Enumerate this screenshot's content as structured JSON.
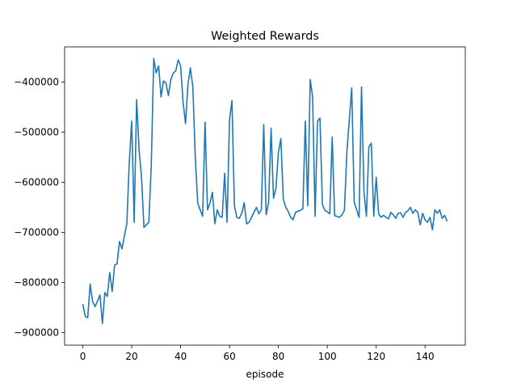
{
  "chart_data": {
    "type": "line",
    "title": "Weighted Rewards",
    "xlabel": "episode",
    "ylabel": "",
    "xlim": [
      -7.45,
      156.45
    ],
    "ylim": [
      -925000,
      -330000
    ],
    "xticks": [
      0,
      20,
      40,
      60,
      80,
      100,
      120,
      140
    ],
    "yticks": [
      -900000,
      -800000,
      -700000,
      -600000,
      -500000,
      -400000
    ],
    "xtick_labels": [
      "0",
      "20",
      "40",
      "60",
      "80",
      "100",
      "120",
      "140"
    ],
    "ytick_labels": [
      "−900000",
      "−800000",
      "−700000",
      "−600000",
      "−500000",
      "−400000"
    ],
    "grid": false,
    "line_color": "#1f77b4",
    "series": [
      {
        "x": [
          0,
          1,
          2,
          3,
          4,
          5,
          6,
          7,
          8,
          9,
          10,
          11,
          12,
          13,
          14,
          15,
          16,
          17,
          18,
          19,
          20,
          21,
          22,
          23,
          24,
          25,
          26,
          27,
          28,
          29,
          30,
          31,
          32,
          33,
          34,
          35,
          36,
          37,
          38,
          39,
          40,
          41,
          42,
          43,
          44,
          45,
          46,
          47,
          48,
          49,
          50,
          51,
          52,
          53,
          54,
          55,
          56,
          57,
          58,
          59,
          60,
          61,
          62,
          63,
          64,
          65,
          66,
          67,
          68,
          69,
          70,
          71,
          72,
          73,
          74,
          75,
          76,
          77,
          78,
          79,
          80,
          81,
          82,
          83,
          84,
          85,
          86,
          87,
          88,
          89,
          90,
          91,
          92,
          93,
          94,
          95,
          96,
          97,
          98,
          99,
          100,
          101,
          102,
          103,
          104,
          105,
          106,
          107,
          108,
          109,
          110,
          111,
          112,
          113,
          114,
          115,
          116,
          117,
          118,
          119,
          120,
          121,
          122,
          123,
          124,
          125,
          126,
          127,
          128,
          129,
          130,
          131,
          132,
          133,
          134,
          135,
          136,
          137,
          138,
          139,
          140,
          141,
          142,
          143,
          144,
          145,
          146,
          147,
          148,
          149
        ],
        "values": [
          -843000,
          -868000,
          -870000,
          -803000,
          -838000,
          -848000,
          -837000,
          -825000,
          -882000,
          -820000,
          -828000,
          -780000,
          -818000,
          -765000,
          -763000,
          -718000,
          -733000,
          -707000,
          -682000,
          -560000,
          -478000,
          -680000,
          -435000,
          -535000,
          -590000,
          -690000,
          -685000,
          -680000,
          -565000,
          -353000,
          -382000,
          -368000,
          -430000,
          -398000,
          -402000,
          -427000,
          -395000,
          -382000,
          -378000,
          -356000,
          -368000,
          -440000,
          -483000,
          -405000,
          -372000,
          -410000,
          -550000,
          -642000,
          -655000,
          -668000,
          -480000,
          -655000,
          -642000,
          -620000,
          -683000,
          -655000,
          -668000,
          -670000,
          -582000,
          -680000,
          -475000,
          -437000,
          -647000,
          -670000,
          -672000,
          -662000,
          -641000,
          -683000,
          -680000,
          -670000,
          -660000,
          -650000,
          -663000,
          -655000,
          -485000,
          -665000,
          -640000,
          -492000,
          -632000,
          -612000,
          -540000,
          -513000,
          -633000,
          -650000,
          -658000,
          -670000,
          -675000,
          -660000,
          -658000,
          -656000,
          -653000,
          -478000,
          -647000,
          -395000,
          -430000,
          -668000,
          -478000,
          -472000,
          -645000,
          -656000,
          -659000,
          -663000,
          -510000,
          -667000,
          -668000,
          -670000,
          -665000,
          -656000,
          -540000,
          -475000,
          -412000,
          -640000,
          -655000,
          -670000,
          -410000,
          -620000,
          -668000,
          -530000,
          -522000,
          -668000,
          -590000,
          -663000,
          -670000,
          -666000,
          -670000,
          -673000,
          -660000,
          -665000,
          -672000,
          -662000,
          -661000,
          -670000,
          -660000,
          -657000,
          -650000,
          -662000,
          -655000,
          -660000,
          -685000,
          -662000,
          -675000,
          -680000,
          -670000,
          -695000,
          -655000,
          -662000,
          -655000,
          -672000,
          -666000,
          -678000
        ]
      }
    ]
  }
}
